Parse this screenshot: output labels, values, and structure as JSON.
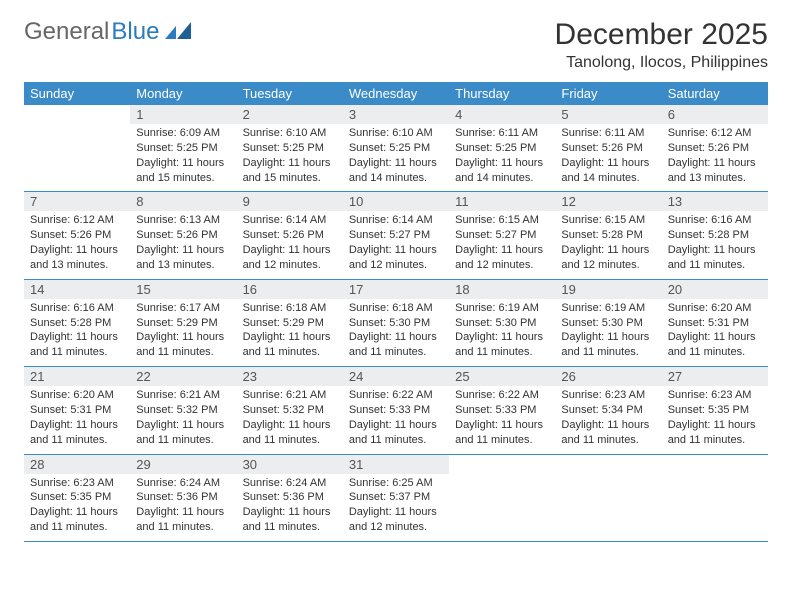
{
  "brand": {
    "part1": "General",
    "part2": "Blue"
  },
  "title": "December 2025",
  "location": "Tanolong, Ilocos, Philippines",
  "colors": {
    "header_bg": "#3b8bc8",
    "header_text": "#ffffff",
    "daynum_bg": "#ebedef",
    "rule": "#3b8bc8",
    "brand_accent": "#2b7bbf"
  },
  "weekdays": [
    "Sunday",
    "Monday",
    "Tuesday",
    "Wednesday",
    "Thursday",
    "Friday",
    "Saturday"
  ],
  "weeks": [
    [
      null,
      {
        "n": "1",
        "sr": "Sunrise: 6:09 AM",
        "ss": "Sunset: 5:25 PM",
        "dl": "Daylight: 11 hours and 15 minutes."
      },
      {
        "n": "2",
        "sr": "Sunrise: 6:10 AM",
        "ss": "Sunset: 5:25 PM",
        "dl": "Daylight: 11 hours and 15 minutes."
      },
      {
        "n": "3",
        "sr": "Sunrise: 6:10 AM",
        "ss": "Sunset: 5:25 PM",
        "dl": "Daylight: 11 hours and 14 minutes."
      },
      {
        "n": "4",
        "sr": "Sunrise: 6:11 AM",
        "ss": "Sunset: 5:25 PM",
        "dl": "Daylight: 11 hours and 14 minutes."
      },
      {
        "n": "5",
        "sr": "Sunrise: 6:11 AM",
        "ss": "Sunset: 5:26 PM",
        "dl": "Daylight: 11 hours and 14 minutes."
      },
      {
        "n": "6",
        "sr": "Sunrise: 6:12 AM",
        "ss": "Sunset: 5:26 PM",
        "dl": "Daylight: 11 hours and 13 minutes."
      }
    ],
    [
      {
        "n": "7",
        "sr": "Sunrise: 6:12 AM",
        "ss": "Sunset: 5:26 PM",
        "dl": "Daylight: 11 hours and 13 minutes."
      },
      {
        "n": "8",
        "sr": "Sunrise: 6:13 AM",
        "ss": "Sunset: 5:26 PM",
        "dl": "Daylight: 11 hours and 13 minutes."
      },
      {
        "n": "9",
        "sr": "Sunrise: 6:14 AM",
        "ss": "Sunset: 5:26 PM",
        "dl": "Daylight: 11 hours and 12 minutes."
      },
      {
        "n": "10",
        "sr": "Sunrise: 6:14 AM",
        "ss": "Sunset: 5:27 PM",
        "dl": "Daylight: 11 hours and 12 minutes."
      },
      {
        "n": "11",
        "sr": "Sunrise: 6:15 AM",
        "ss": "Sunset: 5:27 PM",
        "dl": "Daylight: 11 hours and 12 minutes."
      },
      {
        "n": "12",
        "sr": "Sunrise: 6:15 AM",
        "ss": "Sunset: 5:28 PM",
        "dl": "Daylight: 11 hours and 12 minutes."
      },
      {
        "n": "13",
        "sr": "Sunrise: 6:16 AM",
        "ss": "Sunset: 5:28 PM",
        "dl": "Daylight: 11 hours and 11 minutes."
      }
    ],
    [
      {
        "n": "14",
        "sr": "Sunrise: 6:16 AM",
        "ss": "Sunset: 5:28 PM",
        "dl": "Daylight: 11 hours and 11 minutes."
      },
      {
        "n": "15",
        "sr": "Sunrise: 6:17 AM",
        "ss": "Sunset: 5:29 PM",
        "dl": "Daylight: 11 hours and 11 minutes."
      },
      {
        "n": "16",
        "sr": "Sunrise: 6:18 AM",
        "ss": "Sunset: 5:29 PM",
        "dl": "Daylight: 11 hours and 11 minutes."
      },
      {
        "n": "17",
        "sr": "Sunrise: 6:18 AM",
        "ss": "Sunset: 5:30 PM",
        "dl": "Daylight: 11 hours and 11 minutes."
      },
      {
        "n": "18",
        "sr": "Sunrise: 6:19 AM",
        "ss": "Sunset: 5:30 PM",
        "dl": "Daylight: 11 hours and 11 minutes."
      },
      {
        "n": "19",
        "sr": "Sunrise: 6:19 AM",
        "ss": "Sunset: 5:30 PM",
        "dl": "Daylight: 11 hours and 11 minutes."
      },
      {
        "n": "20",
        "sr": "Sunrise: 6:20 AM",
        "ss": "Sunset: 5:31 PM",
        "dl": "Daylight: 11 hours and 11 minutes."
      }
    ],
    [
      {
        "n": "21",
        "sr": "Sunrise: 6:20 AM",
        "ss": "Sunset: 5:31 PM",
        "dl": "Daylight: 11 hours and 11 minutes."
      },
      {
        "n": "22",
        "sr": "Sunrise: 6:21 AM",
        "ss": "Sunset: 5:32 PM",
        "dl": "Daylight: 11 hours and 11 minutes."
      },
      {
        "n": "23",
        "sr": "Sunrise: 6:21 AM",
        "ss": "Sunset: 5:32 PM",
        "dl": "Daylight: 11 hours and 11 minutes."
      },
      {
        "n": "24",
        "sr": "Sunrise: 6:22 AM",
        "ss": "Sunset: 5:33 PM",
        "dl": "Daylight: 11 hours and 11 minutes."
      },
      {
        "n": "25",
        "sr": "Sunrise: 6:22 AM",
        "ss": "Sunset: 5:33 PM",
        "dl": "Daylight: 11 hours and 11 minutes."
      },
      {
        "n": "26",
        "sr": "Sunrise: 6:23 AM",
        "ss": "Sunset: 5:34 PM",
        "dl": "Daylight: 11 hours and 11 minutes."
      },
      {
        "n": "27",
        "sr": "Sunrise: 6:23 AM",
        "ss": "Sunset: 5:35 PM",
        "dl": "Daylight: 11 hours and 11 minutes."
      }
    ],
    [
      {
        "n": "28",
        "sr": "Sunrise: 6:23 AM",
        "ss": "Sunset: 5:35 PM",
        "dl": "Daylight: 11 hours and 11 minutes."
      },
      {
        "n": "29",
        "sr": "Sunrise: 6:24 AM",
        "ss": "Sunset: 5:36 PM",
        "dl": "Daylight: 11 hours and 11 minutes."
      },
      {
        "n": "30",
        "sr": "Sunrise: 6:24 AM",
        "ss": "Sunset: 5:36 PM",
        "dl": "Daylight: 11 hours and 11 minutes."
      },
      {
        "n": "31",
        "sr": "Sunrise: 6:25 AM",
        "ss": "Sunset: 5:37 PM",
        "dl": "Daylight: 11 hours and 12 minutes."
      },
      null,
      null,
      null
    ]
  ]
}
